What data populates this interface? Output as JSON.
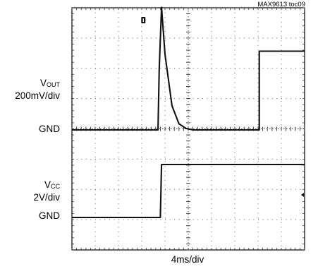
{
  "chart_data": {
    "type": "line",
    "title": "",
    "figure_id": "MAX9613 toc09",
    "x_scale": "4ms/div",
    "x_divisions": 10,
    "y_divisions": 8,
    "grid": true,
    "channels": [
      {
        "name_main": "V",
        "name_sub": "OUT",
        "scale": "200mV/div",
        "ground_label": "GND",
        "x_div": [
          0,
          3.7,
          3.75,
          3.85,
          4.0,
          4.3,
          4.6,
          4.9,
          5.2,
          5.3,
          8.05,
          8.05,
          10
        ],
        "y_div_above_gnd": [
          0,
          0,
          2.0,
          4.05,
          2.5,
          0.8,
          0.2,
          0.05,
          0,
          0,
          0,
          2.6,
          2.6
        ]
      },
      {
        "name_main": "V",
        "name_sub": "CC",
        "scale": "2V/div",
        "ground_label": "GND",
        "x_div": [
          0,
          3.8,
          3.85,
          10
        ],
        "y_div_above_gnd": [
          0,
          0,
          1.75,
          1.75
        ]
      }
    ]
  },
  "labels": {
    "toc": "MAX9613 toc09",
    "vout_main": "V",
    "vout_sub": "OUT",
    "vout_scale": "200mV/div",
    "gnd1": "GND",
    "vcc_main": "V",
    "vcc_sub": "CC",
    "vcc_scale": "2V/div",
    "gnd2": "GND",
    "x_scale": "4ms/div"
  }
}
